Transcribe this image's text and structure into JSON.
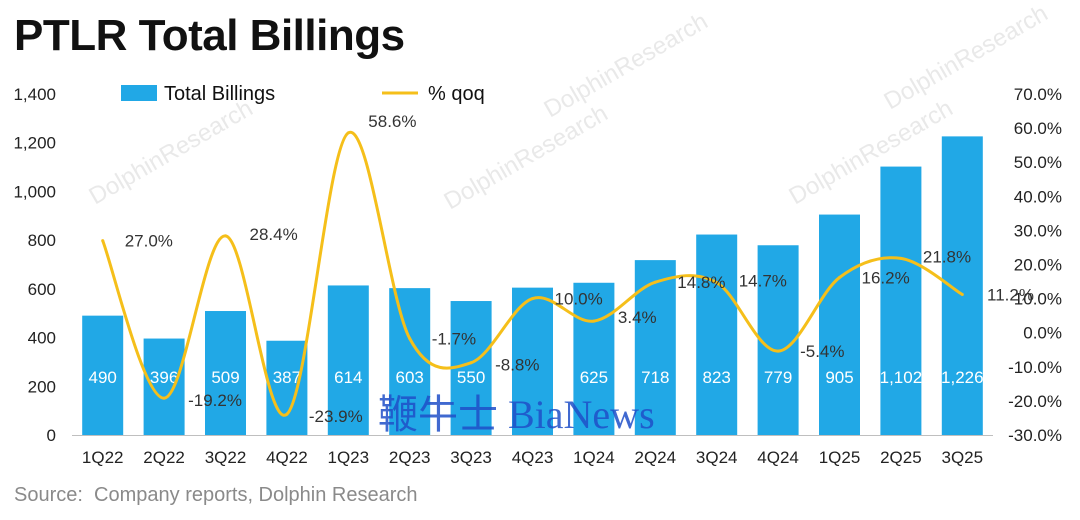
{
  "title": "PTLR Total Billings",
  "source": "Source:  Company reports, Dolphin Research",
  "watermark": "DolphinResearch",
  "stamp_text": "鞭牛士 BiaNews",
  "colors": {
    "bar": "#21a8e6",
    "line": "#f5bf1a"
  },
  "chart_data": {
    "type": "bar",
    "categories": [
      "1Q22",
      "2Q22",
      "3Q22",
      "4Q22",
      "1Q23",
      "2Q23",
      "3Q23",
      "4Q23",
      "1Q24",
      "2Q24",
      "3Q24",
      "4Q24",
      "1Q25",
      "2Q25",
      "3Q25"
    ],
    "series": [
      {
        "name": "Total Billings",
        "type": "bar",
        "axis": "left",
        "values": [
          490,
          396,
          509,
          387,
          614,
          603,
          550,
          605,
          625,
          718,
          823,
          779,
          905,
          1102,
          1226
        ],
        "labels": [
          "490",
          "396",
          "509",
          "387",
          "614",
          "603",
          "550",
          "",
          "625",
          "718",
          "823",
          "779",
          "905",
          "1,102",
          "1,226"
        ]
      },
      {
        "name": "% qoq",
        "type": "line",
        "axis": "right",
        "values": [
          27.0,
          -19.2,
          28.4,
          -23.9,
          58.6,
          -1.7,
          -8.8,
          10.0,
          3.4,
          14.8,
          14.7,
          -5.4,
          16.2,
          21.8,
          11.2
        ],
        "labels": [
          "27.0%",
          "-19.2%",
          "28.4%",
          "-23.9%",
          "58.6%",
          "-1.7%",
          "-8.8%",
          "10.0%",
          "3.4%",
          "14.8%",
          "14.7%",
          "-5.4%",
          "16.2%",
          "21.8%",
          "11.2%"
        ]
      }
    ],
    "ylim_left": [
      0,
      1400
    ],
    "yticks_left": [
      "0",
      "200",
      "400",
      "600",
      "800",
      "1,000",
      "1,200",
      "1,400"
    ],
    "ylim_right": [
      -30,
      70
    ],
    "yticks_right": [
      "-30.0%",
      "-20.0%",
      "-10.0%",
      "0.0%",
      "10.0%",
      "20.0%",
      "30.0%",
      "40.0%",
      "50.0%",
      "60.0%",
      "70.0%"
    ],
    "legend": [
      "Total Billings",
      "% qoq"
    ],
    "legend_position": "top-left",
    "grid": false
  }
}
